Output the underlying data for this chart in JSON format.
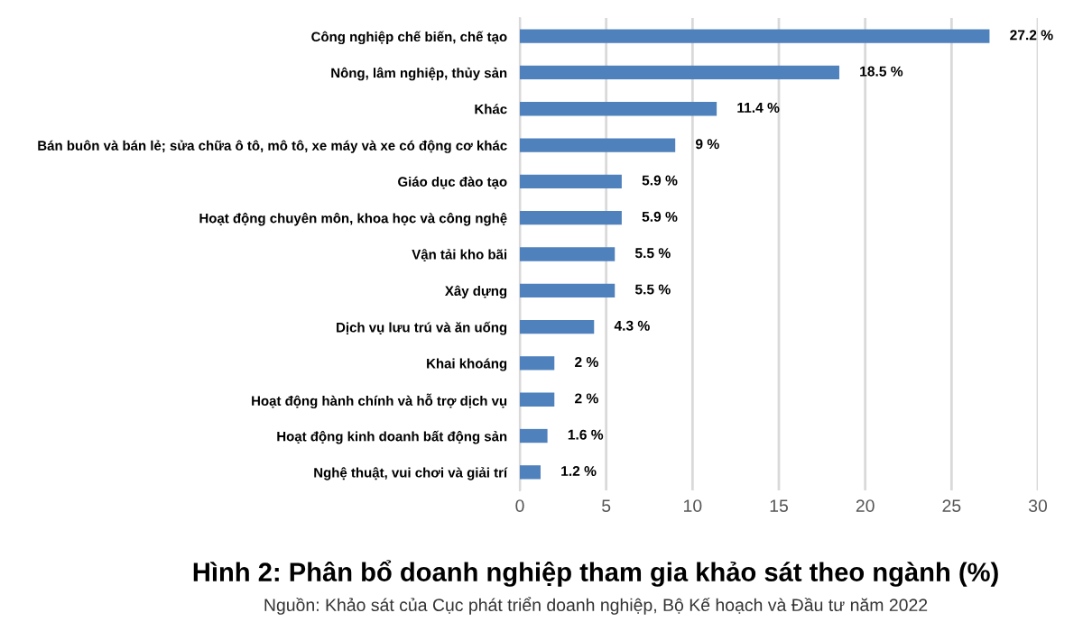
{
  "chart_data": {
    "type": "bar",
    "orientation": "horizontal",
    "title": "Hình 2: Phân bổ doanh nghiệp tham gia khảo sát theo ngành (%)",
    "annotations": [
      "Nguồn: Khảo sát của Cục phát triển doanh nghiệp, Bộ Kế hoạch và Đầu tư năm 2022"
    ],
    "categories": [
      "Công nghiệp chế biến, chế tạo",
      "Nông, lâm nghiệp, thủy sản",
      "Khác",
      "Bán buôn và bán lẻ; sửa chữa ô tô, mô tô, xe máy và xe có động cơ khác",
      "Giáo dục đào tạo",
      "Hoạt động chuyên môn, khoa học và công nghệ",
      "Vận tải kho bãi",
      "Xây dựng",
      "Dịch vụ lưu trú và ăn uống",
      "Khai khoáng",
      "Hoạt động hành chính và hỗ trợ dịch vụ",
      "Hoạt động kinh doanh bất động sản",
      "Nghệ thuật, vui chơi và giải trí"
    ],
    "values": [
      27.2,
      18.5,
      11.4,
      9,
      5.9,
      5.9,
      5.5,
      5.5,
      4.3,
      2,
      2,
      1.6,
      1.2
    ],
    "value_labels": [
      "27.2 %",
      "18.5 %",
      "11.4 %",
      "9 %",
      "5.9 %",
      "5.9 %",
      "5.5 %",
      "5.5 %",
      "4.3 %",
      "2 %",
      "2 %",
      "1.6 %",
      "1.2 %"
    ],
    "color": "#4f81bd",
    "xlim": [
      0,
      30
    ],
    "xticks": [
      0,
      5,
      10,
      15,
      20,
      25,
      30
    ],
    "grid": "x"
  }
}
